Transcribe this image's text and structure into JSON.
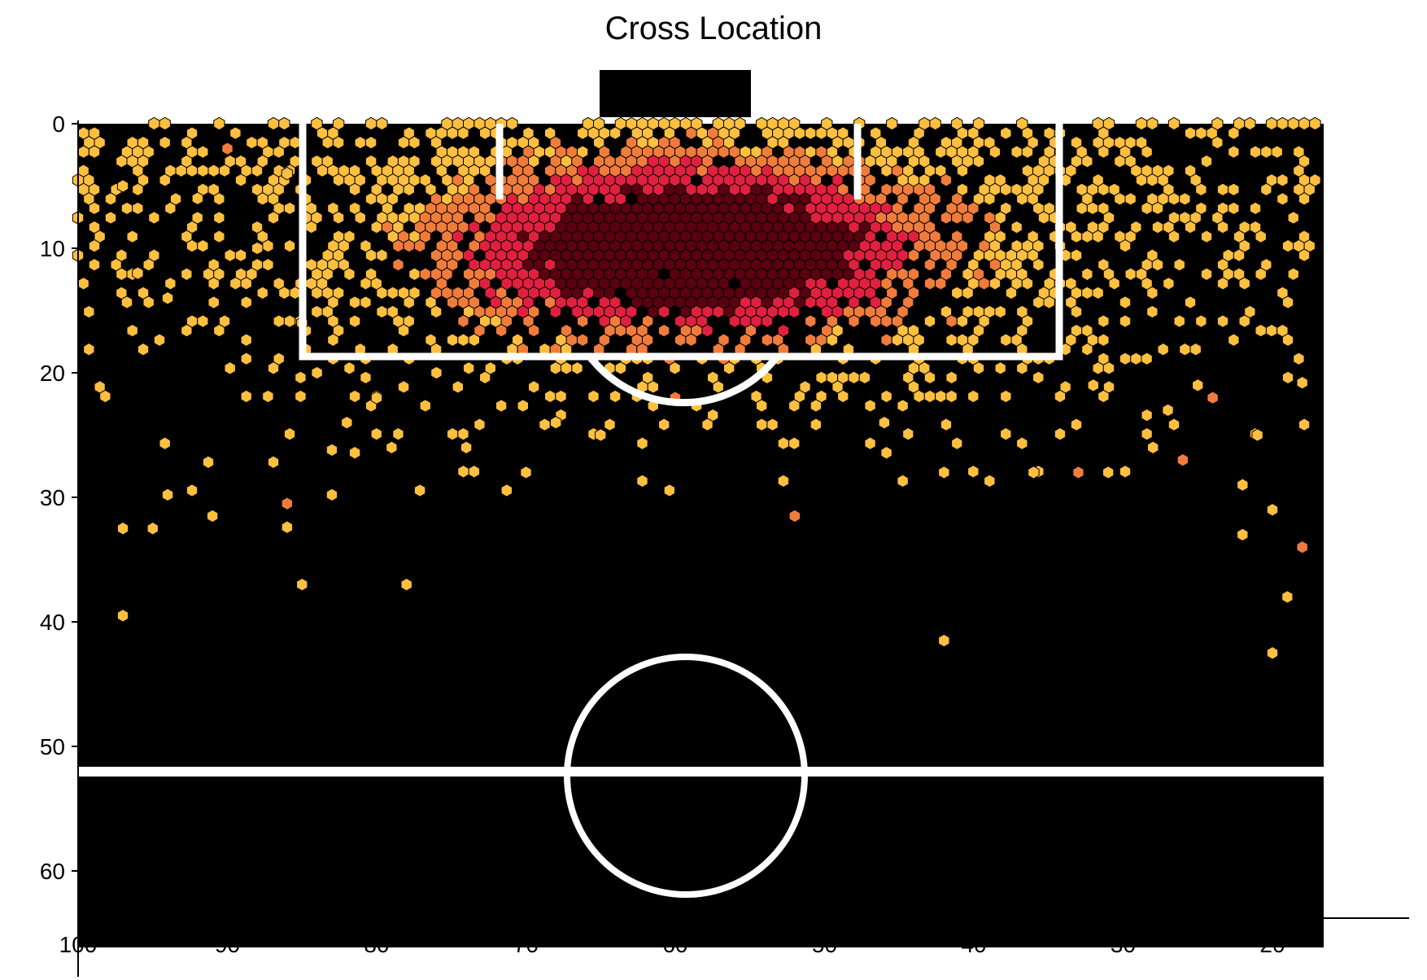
{
  "chart_data": {
    "type": "heatmap",
    "title": "Cross Location",
    "xlabel": "",
    "ylabel": "",
    "xlim": [
      100,
      10
    ],
    "ylim": [
      0,
      64
    ],
    "x_ticks": [
      "100",
      "90",
      "80",
      "70",
      "60",
      "50",
      "40",
      "30",
      "20"
    ],
    "y_ticks": [
      "0",
      "10",
      "20",
      "30",
      "40",
      "50",
      "60"
    ],
    "grid": false,
    "legend": "none",
    "colors": {
      "pitch": "#000000",
      "lines": "#ffffff",
      "low": "#fdbf3f",
      "mid": "#f07c3c",
      "high": "#e0203f",
      "peak": "#5a0010"
    },
    "density_hotspot": {
      "x": 59,
      "y": 10
    },
    "scatter_samples": [
      [
        97,
        5
      ],
      [
        96,
        12
      ],
      [
        94,
        14
      ],
      [
        92,
        6
      ],
      [
        90,
        2
      ],
      [
        88,
        10
      ],
      [
        86,
        4
      ],
      [
        85,
        16
      ],
      [
        84,
        20
      ],
      [
        82,
        24
      ],
      [
        80,
        22
      ],
      [
        79,
        26
      ],
      [
        78,
        37
      ],
      [
        76,
        20
      ],
      [
        74,
        26
      ],
      [
        70,
        28
      ],
      [
        68,
        24
      ],
      [
        65,
        25
      ],
      [
        60,
        22
      ],
      [
        52,
        31.5
      ],
      [
        46,
        24
      ],
      [
        42,
        28
      ],
      [
        42,
        41.5
      ],
      [
        36,
        28
      ],
      [
        33,
        28
      ],
      [
        32,
        21
      ],
      [
        31,
        28
      ],
      [
        28,
        26
      ],
      [
        26,
        27
      ],
      [
        24,
        22
      ],
      [
        22,
        33
      ],
      [
        21,
        25
      ],
      [
        20,
        31
      ],
      [
        19,
        38
      ],
      [
        20,
        42.5
      ],
      [
        18,
        34
      ],
      [
        97,
        32.5
      ],
      [
        97,
        39.5
      ],
      [
        95,
        32.5
      ],
      [
        94,
        29.8
      ],
      [
        91,
        31.5
      ],
      [
        86,
        30.5
      ],
      [
        86,
        32.4
      ],
      [
        85,
        37
      ],
      [
        83,
        29.8
      ],
      [
        83,
        26.2
      ],
      [
        27,
        23
      ],
      [
        25,
        21
      ],
      [
        22,
        29
      ],
      [
        18,
        20.8
      ]
    ]
  }
}
